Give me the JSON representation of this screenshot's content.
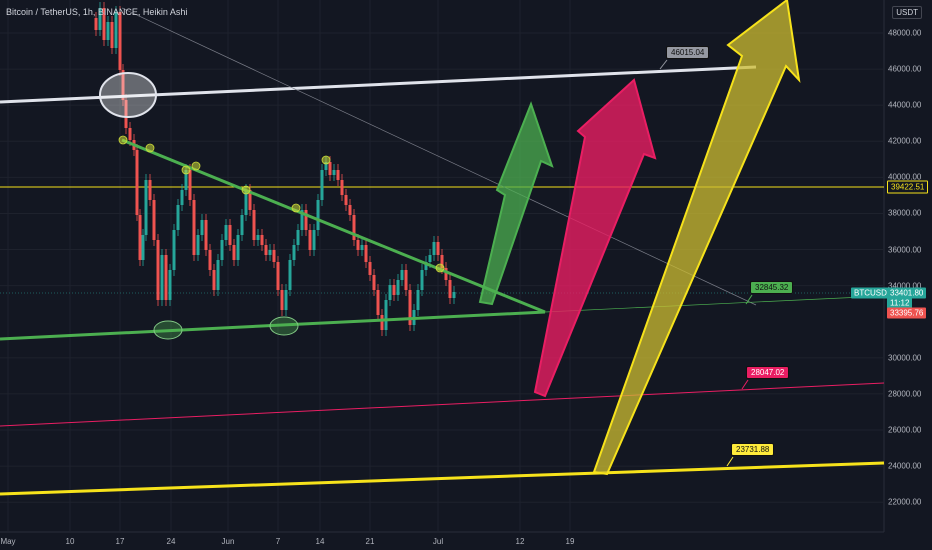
{
  "header": {
    "title": "Bitcoin / TetherUS, 1h, BINANCE, Heikin Ashi",
    "currency": "USDT"
  },
  "chart_data": {
    "type": "candlestick",
    "title": "Bitcoin / TetherUS, 1h, BINANCE, Heikin Ashi",
    "y_ticks": [
      "48000.00",
      "46000.00",
      "44000.00",
      "42000.00",
      "40000.00",
      "38000.00",
      "36000.00",
      "34000.00",
      "30000.00",
      "28000.00",
      "26000.00",
      "24000.00",
      "22000.00"
    ],
    "x_ticks": [
      "May",
      "10",
      "17",
      "24",
      "Jun",
      "7",
      "14",
      "21",
      "Jul",
      "12",
      "19"
    ],
    "ylim": [
      21300,
      49500
    ],
    "grid": true,
    "price_tags": {
      "resistance": "39422.51",
      "symbol": "BTCUSDT",
      "last_price": "33401.80",
      "countdown": "11:12",
      "prev_price": "33395.76"
    },
    "annotations": [
      {
        "label": "46015.04",
        "color": "#9598a1"
      },
      {
        "label": "32845.32",
        "color": "#4caf50"
      },
      {
        "label": "28047.02",
        "color": "#e91e63"
      },
      {
        "label": "23731.88",
        "color": "#ffeb3b"
      }
    ],
    "colors": {
      "up": "#26a69a",
      "down": "#ef5350",
      "green": "#4caf50",
      "pink": "#e91e63",
      "yellow": "#f6e21b",
      "white": "#e0e3eb"
    }
  }
}
